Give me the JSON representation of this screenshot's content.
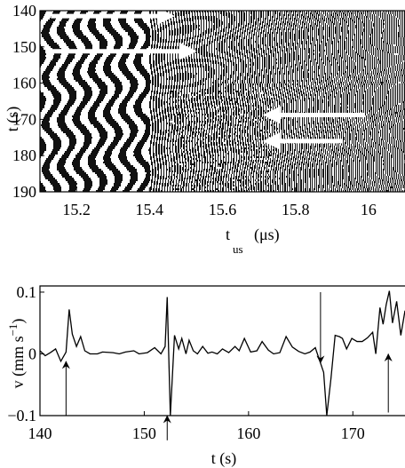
{
  "chart_data": [
    {
      "type": "heatmap",
      "description_source": "spatiotemporal ultrasound echo diagram (black/white stripes)",
      "xlabel": "t",
      "xlabel_sub": "us",
      "xlabel_unit": "(μs)",
      "ylabel": "t (s)",
      "xlim": [
        15.1,
        16.1
      ],
      "ylim": [
        190,
        140
      ],
      "x_ticks": [
        15.2,
        15.4,
        15.6,
        15.8,
        16
      ],
      "x_tick_labels": [
        "15.2",
        "15.4",
        "15.6",
        "15.8",
        "16"
      ],
      "y_ticks": [
        140,
        150,
        160,
        170,
        180,
        190
      ],
      "y_tick_labels": [
        "140",
        "150",
        "160",
        "170",
        "180",
        "190"
      ],
      "annotations": [
        {
          "kind": "arrow",
          "direction": "right",
          "from": [
            15.13,
            141.5
          ],
          "to": [
            15.46,
            141.5
          ],
          "color": "#ffffff"
        },
        {
          "kind": "arrow",
          "direction": "right",
          "from": [
            15.13,
            151.2
          ],
          "to": [
            15.52,
            151.2
          ],
          "color": "#ffffff"
        },
        {
          "kind": "arrow",
          "direction": "left",
          "from": [
            15.99,
            168.8
          ],
          "to": [
            15.72,
            168.8
          ],
          "color": "#ffffff"
        },
        {
          "kind": "arrow",
          "direction": "left",
          "from": [
            15.93,
            176.0
          ],
          "to": [
            15.72,
            176.0
          ],
          "color": "#ffffff"
        }
      ]
    },
    {
      "type": "line",
      "xlabel": "t (s)",
      "ylabel": "v (mm s",
      "ylabel_sup": "−1",
      "ylabel_close": ")",
      "xlim": [
        140,
        175
      ],
      "ylim": [
        -0.1,
        0.11
      ],
      "x_ticks": [
        140,
        150,
        160,
        170
      ],
      "x_tick_labels": [
        "140",
        "150",
        "160",
        "170"
      ],
      "y_ticks": [
        -0.1,
        0,
        0.1
      ],
      "y_tick_labels": [
        "−0.1",
        "0",
        "0.1"
      ],
      "series": [
        {
          "x": [
            140.0,
            140.5,
            141.0,
            141.5,
            142.0,
            142.5,
            142.8,
            143.1,
            143.5,
            143.9,
            144.3,
            144.8,
            145.5,
            146.0,
            147.0,
            147.6,
            148.2,
            149.0,
            149.5,
            150.3,
            151.0,
            151.6,
            152.0,
            152.2,
            152.5,
            152.9,
            153.3,
            153.6,
            154.0,
            154.3,
            154.7,
            155.1,
            155.6,
            156.1,
            156.5,
            157.0,
            157.5,
            158.1,
            158.7,
            159.1,
            159.6,
            160.2,
            160.8,
            161.3,
            161.9,
            162.4,
            163.0,
            163.6,
            164.2,
            164.8,
            165.4,
            165.9,
            166.4,
            166.9,
            167.2,
            167.5,
            167.9,
            168.3,
            168.7,
            169.0,
            169.4,
            169.9,
            170.4,
            170.9,
            171.4,
            171.9,
            172.2,
            172.6,
            172.9,
            173.2,
            173.5,
            173.8,
            174.2,
            174.6,
            175.0
          ],
          "y": [
            0.005,
            -0.003,
            0.002,
            0.008,
            -0.012,
            0.003,
            0.072,
            0.032,
            0.012,
            0.028,
            0.005,
            0.0,
            0.0,
            0.003,
            0.002,
            0.0,
            0.003,
            0.005,
            0.0,
            0.002,
            0.01,
            0.0,
            0.012,
            0.092,
            -0.1,
            0.03,
            0.008,
            0.025,
            0.0,
            0.022,
            0.005,
            0.0,
            0.012,
            0.001,
            0.003,
            0.0,
            0.008,
            0.002,
            0.012,
            0.005,
            0.025,
            0.003,
            0.005,
            0.02,
            0.006,
            0.0,
            0.002,
            0.028,
            0.011,
            0.004,
            0.0,
            0.003,
            0.01,
            -0.015,
            -0.03,
            -0.1,
            -0.04,
            0.03,
            0.028,
            0.025,
            0.008,
            0.025,
            0.02,
            0.02,
            0.026,
            0.035,
            0.0,
            0.075,
            0.048,
            0.08,
            0.102,
            0.05,
            0.085,
            0.03,
            0.07
          ]
        }
      ],
      "annotations": [
        {
          "kind": "arrow",
          "direction": "up",
          "tip": [
            142.5,
            -0.012
          ],
          "tail_y": -0.1,
          "color": "#000000"
        },
        {
          "kind": "arrow",
          "direction": "up",
          "tip": [
            152.2,
            -0.1
          ],
          "tail_y": -0.14,
          "color": "#000000"
        },
        {
          "kind": "arrow",
          "direction": "down",
          "tip": [
            166.9,
            -0.015
          ],
          "tail_y": 0.1,
          "color": "#000000"
        },
        {
          "kind": "arrow",
          "direction": "up",
          "tip": [
            173.4,
            0.0
          ],
          "tail_y": -0.095,
          "color": "#000000"
        }
      ]
    }
  ]
}
